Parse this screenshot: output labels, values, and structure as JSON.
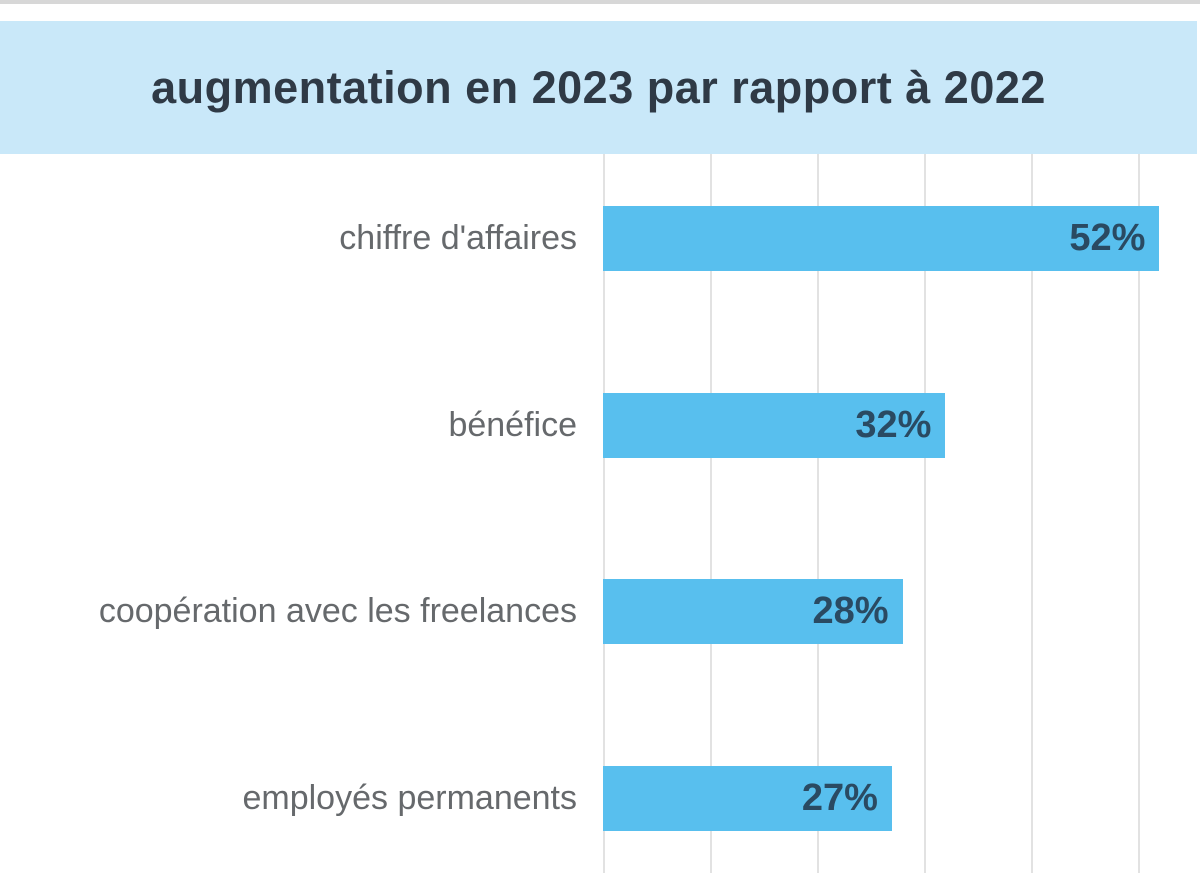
{
  "header": {
    "title": "augmentation en 2023 par rapport à 2022"
  },
  "chart_data": {
    "type": "bar",
    "orientation": "horizontal",
    "title": "augmentation en 2023 par rapport à 2022",
    "categories": [
      "chiffre d'affaires",
      "bénéfice",
      "coopération avec les freelances",
      "employés permanents"
    ],
    "values": [
      52,
      32,
      28,
      27
    ],
    "value_labels": [
      "52%",
      "32%",
      "28%",
      "27%"
    ],
    "unit": "%",
    "xlim": [
      0,
      56
    ],
    "gridlines_percent": [
      0,
      10,
      20,
      30,
      40,
      50
    ],
    "grid": true,
    "legend": false,
    "axis_tick_labels_visible": false
  },
  "colors": {
    "title_band_bg": "#c9e8f9",
    "title_text": "#2f3a46",
    "bar_fill": "#58bfee",
    "bar_value_text": "#2a4a62",
    "category_text": "#66696c",
    "gridline": "#e2e2e2",
    "background": "#ffffff",
    "top_edge": "#d7d7d7"
  }
}
